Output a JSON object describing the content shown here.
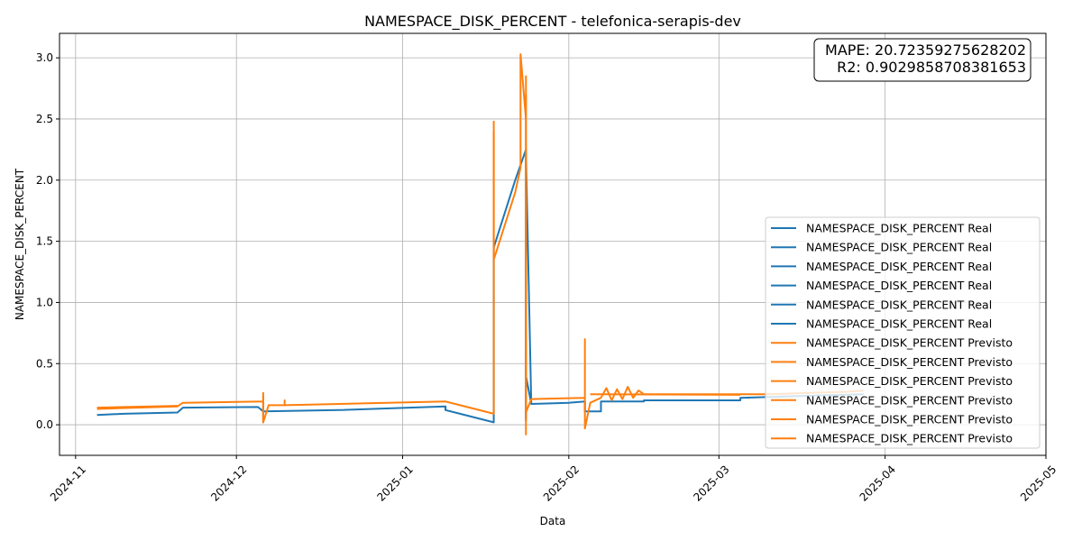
{
  "chart_data": {
    "type": "line",
    "title": "NAMESPACE_DISK_PERCENT - telefonica-serapis-dev",
    "xlabel": "Data",
    "ylabel": "NAMESPACE_DISK_PERCENT",
    "xlim": [
      "2024-10-29",
      "2025-05-01"
    ],
    "ylim": [
      -0.25,
      3.2
    ],
    "x_ticks": [
      "2024-11",
      "2024-12",
      "2025-01",
      "2025-02",
      "2025-03",
      "2025-04",
      "2025-05"
    ],
    "y_ticks": [
      "0.0",
      "0.5",
      "1.0",
      "1.5",
      "2.0",
      "2.5",
      "3.0"
    ],
    "grid": true,
    "legend_position": "lower-right",
    "annotation": {
      "mape_label": "MAPE: 20.72359275628202",
      "r2_label": "R2: 0.9029858708381653"
    },
    "colors": {
      "real": "#1f77b4",
      "previsto": "#ff7f0e"
    },
    "series": [
      {
        "name": "NAMESPACE_DISK_PERCENT Real",
        "points": [
          [
            "2024-11-05",
            0.08
          ],
          [
            "2024-11-10",
            0.09
          ],
          [
            "2024-11-20",
            0.1
          ],
          [
            "2024-11-21",
            0.14
          ],
          [
            "2024-12-05",
            0.145
          ],
          [
            "2024-12-06",
            0.11
          ],
          [
            "2024-12-20",
            0.12
          ],
          [
            "2025-01-09",
            0.15
          ],
          [
            "2025-01-09",
            0.12
          ],
          [
            "2025-01-18",
            0.02
          ],
          [
            "2025-01-18",
            1.45
          ],
          [
            "2025-01-22",
            2.0
          ],
          [
            "2025-01-24",
            2.25
          ],
          [
            "2025-01-24",
            0.05
          ],
          [
            "2025-01-24",
            0.4
          ],
          [
            "2025-01-25",
            0.17
          ],
          [
            "2025-02-01",
            0.18
          ],
          [
            "2025-02-04",
            0.19
          ],
          [
            "2025-02-04",
            0.11
          ],
          [
            "2025-02-07",
            0.11
          ],
          [
            "2025-02-07",
            0.19
          ],
          [
            "2025-02-15",
            0.19
          ],
          [
            "2025-02-15",
            0.2
          ],
          [
            "2025-03-05",
            0.2
          ],
          [
            "2025-03-05",
            0.22
          ],
          [
            "2025-03-20",
            0.24
          ],
          [
            "2025-03-28",
            0.25
          ]
        ]
      },
      {
        "name": "NAMESPACE_DISK_PERCENT Real",
        "points": [
          [
            "2025-01-24",
            2.25
          ],
          [
            "2025-01-24",
            0.03
          ],
          [
            "2025-01-24",
            2.22
          ],
          [
            "2025-01-25",
            0.17
          ]
        ]
      },
      {
        "name": "NAMESPACE_DISK_PERCENT Real",
        "points": [
          [
            "2024-12-06",
            0.145
          ],
          [
            "2024-12-06",
            0.02
          ],
          [
            "2024-12-06",
            0.11
          ]
        ]
      },
      {
        "name": "NAMESPACE_DISK_PERCENT Real",
        "points": [
          [
            "2025-02-04",
            0.19
          ],
          [
            "2025-02-04",
            0.11
          ]
        ]
      },
      {
        "name": "NAMESPACE_DISK_PERCENT Real",
        "points": [
          [
            "2025-01-09",
            0.15
          ],
          [
            "2025-01-09",
            0.12
          ]
        ]
      },
      {
        "name": "NAMESPACE_DISK_PERCENT Real",
        "points": [
          [
            "2025-02-15",
            0.19
          ],
          [
            "2025-02-15",
            0.2
          ]
        ]
      },
      {
        "name": "NAMESPACE_DISK_PERCENT Previsto",
        "points": [
          [
            "2024-11-05",
            0.13
          ],
          [
            "2024-11-20",
            0.15
          ],
          [
            "2024-11-21",
            0.18
          ],
          [
            "2024-12-06",
            0.19
          ],
          [
            "2024-12-06",
            0.26
          ],
          [
            "2024-12-06",
            0.02
          ],
          [
            "2024-12-07",
            0.16
          ],
          [
            "2024-12-10",
            0.16
          ],
          [
            "2024-12-10",
            0.2
          ],
          [
            "2024-12-10",
            0.16
          ],
          [
            "2025-01-09",
            0.19
          ],
          [
            "2025-01-18",
            0.09
          ],
          [
            "2025-01-18",
            2.48
          ],
          [
            "2025-01-18",
            1.35
          ],
          [
            "2025-01-22",
            1.9
          ],
          [
            "2025-01-23",
            2.1
          ],
          [
            "2025-01-23",
            3.03
          ],
          [
            "2025-01-24",
            2.5
          ],
          [
            "2025-01-24",
            -0.08
          ],
          [
            "2025-01-24",
            2.85
          ],
          [
            "2025-01-24",
            0.1
          ],
          [
            "2025-01-25",
            0.21
          ],
          [
            "2025-02-04",
            0.22
          ],
          [
            "2025-02-04",
            0.7
          ],
          [
            "2025-02-04",
            -0.03
          ],
          [
            "2025-02-05",
            0.18
          ],
          [
            "2025-02-07",
            0.22
          ],
          [
            "2025-02-08",
            0.3
          ],
          [
            "2025-02-09",
            0.2
          ],
          [
            "2025-02-10",
            0.29
          ],
          [
            "2025-02-11",
            0.21
          ],
          [
            "2025-02-12",
            0.31
          ],
          [
            "2025-02-13",
            0.22
          ],
          [
            "2025-02-14",
            0.28
          ],
          [
            "2025-02-15",
            0.25
          ],
          [
            "2025-03-05",
            0.25
          ],
          [
            "2025-03-10",
            0.25
          ],
          [
            "2025-03-25",
            0.27
          ],
          [
            "2025-03-28",
            0.28
          ]
        ]
      },
      {
        "name": "NAMESPACE_DISK_PERCENT Previsto",
        "points": [
          [
            "2025-02-05",
            0.25
          ],
          [
            "2025-03-05",
            0.245
          ]
        ]
      },
      {
        "name": "NAMESPACE_DISK_PERCENT Previsto",
        "points": [
          [
            "2024-11-05",
            0.14
          ],
          [
            "2024-11-20",
            0.155
          ]
        ]
      },
      {
        "name": "NAMESPACE_DISK_PERCENT Previsto",
        "points": [
          [
            "2025-01-24",
            0.2
          ],
          [
            "2025-01-24",
            2.7
          ],
          [
            "2025-01-24",
            0.15
          ]
        ]
      },
      {
        "name": "NAMESPACE_DISK_PERCENT Previsto",
        "points": [
          [
            "2025-01-18",
            2.4
          ],
          [
            "2025-01-18",
            1.4
          ]
        ]
      },
      {
        "name": "NAMESPACE_DISK_PERCENT Previsto",
        "points": [
          [
            "2024-12-06",
            0.24
          ],
          [
            "2024-12-06",
            0.05
          ]
        ]
      }
    ]
  }
}
